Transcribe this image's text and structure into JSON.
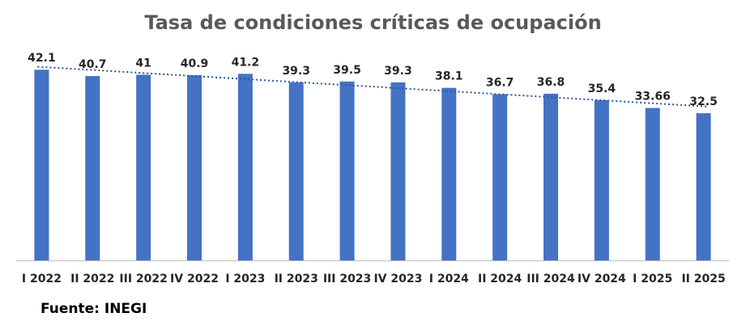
{
  "title": "Tasa de condiciones críticas de ocupación",
  "source": "Fuente: INEGI",
  "colors": {
    "bar": "#4472C4",
    "trendline": "#2F5597",
    "title": "#595959",
    "axis": "#BFBFBF",
    "label": "#262626"
  },
  "chart_data": {
    "type": "bar",
    "title": "Tasa de condiciones críticas de ocupación",
    "categories": [
      "I 2022",
      "II 2022",
      "III 2022",
      "IV 2022",
      "I 2023",
      "II 2023",
      "III 2023",
      "IV 2023",
      "I 2024",
      "II 2024",
      "III 2024",
      "IV 2024",
      "I 2025",
      "II 2025"
    ],
    "values": [
      42.1,
      40.7,
      41,
      40.9,
      41.2,
      39.3,
      39.5,
      39.3,
      38.1,
      36.7,
      36.8,
      35.4,
      33.66,
      32.5
    ],
    "value_labels": [
      "42.1",
      "40.7",
      "41",
      "40.9",
      "41.2",
      "39.3",
      "39.5",
      "39.3",
      "38.1",
      "36.7",
      "36.8",
      "35.4",
      "33.66",
      "32.5"
    ],
    "ylim": [
      0,
      45
    ],
    "grid": false,
    "legend": "none",
    "trendline": "linear, dotted"
  }
}
